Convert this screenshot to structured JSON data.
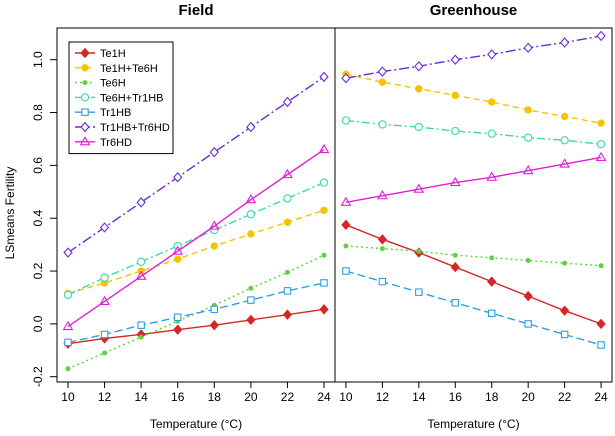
{
  "chart_data": {
    "type": "line",
    "ylabel": "LSmeans Fertility",
    "ylim": [
      -0.22,
      1.12
    ],
    "yticks": [
      -0.2,
      0.0,
      0.2,
      0.4,
      0.6,
      0.8,
      1.0
    ],
    "ytick_labels": [
      "-0.2",
      "0.0",
      "0.2",
      "0.4",
      "0.6",
      "0.8",
      "1.0"
    ],
    "xticks": [
      10,
      12,
      14,
      16,
      18,
      20,
      22,
      24
    ],
    "xtick_labels": [
      "10",
      "12",
      "14",
      "16",
      "18",
      "20",
      "22",
      "24"
    ],
    "xlim": [
      9.4,
      24.6
    ],
    "legend_position": "top-left",
    "styles": {
      "Te1H": {
        "color": "#d62728",
        "marker": "diamond-filled",
        "dash": ""
      },
      "Te1H+Te6H": {
        "color": "#f5c400",
        "marker": "circle-filled",
        "dash": "6,4"
      },
      "Te6H": {
        "color": "#5ed13e",
        "marker": "dot-filled",
        "dash": "2,3"
      },
      "Te6H+Tr1HB": {
        "color": "#3fd6a8",
        "marker": "circle-open",
        "dash": "8,3,2,3"
      },
      "Tr1HB": {
        "color": "#2f9fe3",
        "marker": "square-open",
        "dash": "8,4"
      },
      "Tr1HB+Tr6HD": {
        "color": "#6a2bd4",
        "marker": "diamond-open",
        "dash": "10,3,2,3"
      },
      "Tr6HD": {
        "color": "#e21ed6",
        "marker": "triangle-open",
        "dash": ""
      }
    },
    "panels": [
      {
        "title": "Field",
        "xlabel": "Temperature (°C)",
        "x": [
          10,
          12,
          14,
          16,
          18,
          20,
          22,
          24
        ],
        "series": [
          {
            "name": "Te1H",
            "values": [
              -0.075,
              -0.055,
              -0.04,
              -0.022,
              -0.005,
              0.015,
              0.035,
              0.055
            ]
          },
          {
            "name": "Te1H+Te6H",
            "values": [
              0.115,
              0.155,
              0.2,
              0.245,
              0.295,
              0.34,
              0.385,
              0.43
            ]
          },
          {
            "name": "Te6H",
            "values": [
              -0.17,
              -0.11,
              -0.05,
              0.01,
              0.07,
              0.135,
              0.195,
              0.26
            ]
          },
          {
            "name": "Te6H+Tr1HB",
            "values": [
              0.11,
              0.175,
              0.235,
              0.295,
              0.355,
              0.415,
              0.475,
              0.535
            ]
          },
          {
            "name": "Tr1HB",
            "values": [
              -0.07,
              -0.04,
              -0.005,
              0.025,
              0.055,
              0.09,
              0.125,
              0.155
            ]
          },
          {
            "name": "Tr1HB+Tr6HD",
            "values": [
              0.27,
              0.365,
              0.46,
              0.555,
              0.65,
              0.745,
              0.84,
              0.935
            ]
          },
          {
            "name": "Tr6HD",
            "values": [
              -0.01,
              0.085,
              0.18,
              0.275,
              0.37,
              0.47,
              0.565,
              0.66
            ]
          }
        ]
      },
      {
        "title": "Greenhouse",
        "xlabel": "Temperature (°C)",
        "x": [
          10,
          12,
          14,
          16,
          18,
          20,
          22,
          24
        ],
        "series": [
          {
            "name": "Te1H",
            "values": [
              0.375,
              0.32,
              0.27,
              0.215,
              0.16,
              0.105,
              0.05,
              0.0
            ]
          },
          {
            "name": "Te1H+Te6H",
            "values": [
              0.945,
              0.915,
              0.89,
              0.865,
              0.84,
              0.81,
              0.785,
              0.76
            ]
          },
          {
            "name": "Te6H",
            "values": [
              0.295,
              0.285,
              0.275,
              0.26,
              0.25,
              0.24,
              0.23,
              0.22
            ]
          },
          {
            "name": "Te6H+Tr1HB",
            "values": [
              0.77,
              0.755,
              0.745,
              0.73,
              0.72,
              0.705,
              0.695,
              0.68
            ]
          },
          {
            "name": "Tr1HB",
            "values": [
              0.2,
              0.16,
              0.12,
              0.08,
              0.04,
              0.0,
              -0.04,
              -0.08
            ]
          },
          {
            "name": "Tr1HB+Tr6HD",
            "values": [
              0.93,
              0.955,
              0.975,
              1.0,
              1.02,
              1.045,
              1.065,
              1.09
            ]
          },
          {
            "name": "Tr6HD",
            "values": [
              0.46,
              0.485,
              0.51,
              0.535,
              0.555,
              0.58,
              0.605,
              0.63
            ]
          }
        ]
      }
    ],
    "legend": [
      "Te1H",
      "Te1H+Te6H",
      "Te6H",
      "Te6H+Tr1HB",
      "Tr1HB",
      "Tr1HB+Tr6HD",
      "Tr6HD"
    ]
  }
}
